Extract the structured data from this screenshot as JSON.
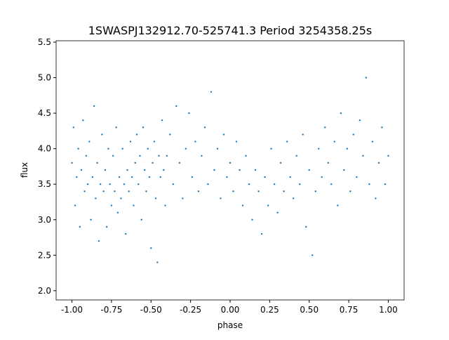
{
  "chart_data": {
    "type": "scatter",
    "title": "1SWASPJ132912.70-525741.3 Period 3254358.25s",
    "xlabel": "phase",
    "ylabel": "flux",
    "xlim": [
      -1.1,
      1.1
    ],
    "ylim": [
      1.87,
      5.52
    ],
    "xticks": [
      "-1.00",
      "-0.75",
      "-0.50",
      "-0.25",
      "0.00",
      "0.25",
      "0.50",
      "0.75",
      "1.00"
    ],
    "yticks": [
      "2.0",
      "2.5",
      "3.0",
      "3.5",
      "4.0",
      "4.5",
      "5.0",
      "5.5"
    ],
    "grid": false,
    "marker_color": "#1f77b4",
    "note_points": "representative sample of the dense point cloud",
    "points": [
      [
        -1.0,
        3.8
      ],
      [
        -0.99,
        4.3
      ],
      [
        -0.98,
        3.2
      ],
      [
        -0.97,
        3.6
      ],
      [
        -0.96,
        4.0
      ],
      [
        -0.95,
        2.9
      ],
      [
        -0.94,
        3.7
      ],
      [
        -0.93,
        4.4
      ],
      [
        -0.92,
        3.4
      ],
      [
        -0.91,
        3.9
      ],
      [
        -0.9,
        3.5
      ],
      [
        -0.89,
        4.1
      ],
      [
        -0.88,
        3.0
      ],
      [
        -0.87,
        3.6
      ],
      [
        -0.86,
        4.6
      ],
      [
        -0.85,
        3.3
      ],
      [
        -0.84,
        3.8
      ],
      [
        -0.83,
        2.7
      ],
      [
        -0.82,
        3.5
      ],
      [
        -0.81,
        4.2
      ],
      [
        -0.8,
        3.4
      ],
      [
        -0.79,
        3.7
      ],
      [
        -0.78,
        2.9
      ],
      [
        -0.77,
        4.0
      ],
      [
        -0.76,
        3.5
      ],
      [
        -0.75,
        3.2
      ],
      [
        -0.74,
        3.9
      ],
      [
        -0.73,
        3.4
      ],
      [
        -0.72,
        4.3
      ],
      [
        -0.71,
        3.1
      ],
      [
        -0.7,
        3.6
      ],
      [
        -0.69,
        3.3
      ],
      [
        -0.68,
        4.0
      ],
      [
        -0.67,
        3.5
      ],
      [
        -0.66,
        2.8
      ],
      [
        -0.65,
        3.7
      ],
      [
        -0.64,
        3.4
      ],
      [
        -0.63,
        4.1
      ],
      [
        -0.62,
        3.6
      ],
      [
        -0.61,
        3.2
      ],
      [
        -0.6,
        3.8
      ],
      [
        -0.59,
        4.2
      ],
      [
        -0.58,
        3.5
      ],
      [
        -0.57,
        3.9
      ],
      [
        -0.56,
        3.0
      ],
      [
        -0.55,
        4.3
      ],
      [
        -0.54,
        3.7
      ],
      [
        -0.53,
        3.4
      ],
      [
        -0.52,
        4.0
      ],
      [
        -0.51,
        3.6
      ],
      [
        -0.5,
        2.6
      ],
      [
        -0.49,
        3.8
      ],
      [
        -0.48,
        4.1
      ],
      [
        -0.47,
        3.3
      ],
      [
        -0.46,
        2.4
      ],
      [
        -0.45,
        3.9
      ],
      [
        -0.44,
        3.6
      ],
      [
        -0.43,
        4.4
      ],
      [
        -0.42,
        3.7
      ],
      [
        -0.41,
        3.2
      ],
      [
        -0.4,
        3.9
      ],
      [
        -0.38,
        4.2
      ],
      [
        -0.36,
        3.5
      ],
      [
        -0.34,
        4.6
      ],
      [
        -0.32,
        3.8
      ],
      [
        -0.3,
        3.3
      ],
      [
        -0.28,
        4.0
      ],
      [
        -0.26,
        4.5
      ],
      [
        -0.24,
        3.6
      ],
      [
        -0.22,
        4.1
      ],
      [
        -0.2,
        3.4
      ],
      [
        -0.18,
        3.9
      ],
      [
        -0.16,
        4.3
      ],
      [
        -0.14,
        3.5
      ],
      [
        -0.12,
        4.8
      ],
      [
        -0.1,
        3.7
      ],
      [
        -0.08,
        4.0
      ],
      [
        -0.06,
        3.3
      ],
      [
        -0.04,
        4.2
      ],
      [
        -0.02,
        3.6
      ],
      [
        0.0,
        3.8
      ],
      [
        0.02,
        3.4
      ],
      [
        0.04,
        4.1
      ],
      [
        0.06,
        3.7
      ],
      [
        0.08,
        3.2
      ],
      [
        0.1,
        3.9
      ],
      [
        0.12,
        3.5
      ],
      [
        0.14,
        3.0
      ],
      [
        0.16,
        3.7
      ],
      [
        0.18,
        3.4
      ],
      [
        0.2,
        2.8
      ],
      [
        0.22,
        3.6
      ],
      [
        0.24,
        3.2
      ],
      [
        0.26,
        4.0
      ],
      [
        0.28,
        3.5
      ],
      [
        0.3,
        3.1
      ],
      [
        0.32,
        3.8
      ],
      [
        0.34,
        3.4
      ],
      [
        0.36,
        4.1
      ],
      [
        0.38,
        3.6
      ],
      [
        0.4,
        3.3
      ],
      [
        0.42,
        3.9
      ],
      [
        0.44,
        3.5
      ],
      [
        0.46,
        4.2
      ],
      [
        0.48,
        2.9
      ],
      [
        0.5,
        3.7
      ],
      [
        0.52,
        2.5
      ],
      [
        0.54,
        3.4
      ],
      [
        0.56,
        4.0
      ],
      [
        0.58,
        3.6
      ],
      [
        0.6,
        4.3
      ],
      [
        0.62,
        3.8
      ],
      [
        0.64,
        3.5
      ],
      [
        0.66,
        4.1
      ],
      [
        0.68,
        3.2
      ],
      [
        0.7,
        4.5
      ],
      [
        0.72,
        3.7
      ],
      [
        0.74,
        4.0
      ],
      [
        0.76,
        3.4
      ],
      [
        0.78,
        4.2
      ],
      [
        0.8,
        3.6
      ],
      [
        0.82,
        4.4
      ],
      [
        0.84,
        3.9
      ],
      [
        0.86,
        5.0
      ],
      [
        0.88,
        3.5
      ],
      [
        0.9,
        4.1
      ],
      [
        0.92,
        3.3
      ],
      [
        0.94,
        3.8
      ],
      [
        0.96,
        4.3
      ],
      [
        0.98,
        3.5
      ],
      [
        1.0,
        3.9
      ]
    ]
  }
}
